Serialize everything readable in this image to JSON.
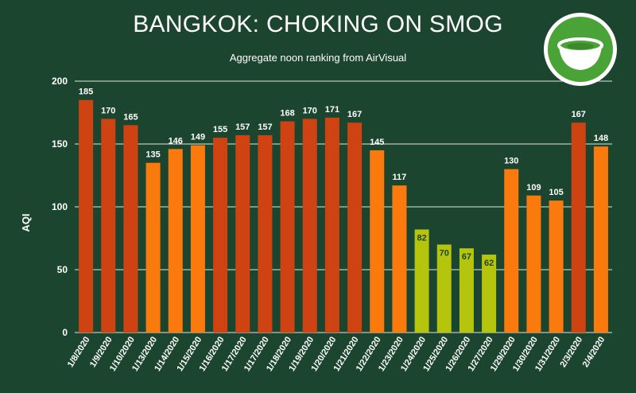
{
  "chart_data": {
    "type": "bar",
    "title": "BANGKOK: CHOKING ON SMOG",
    "subtitle": "Aggregate noon ranking from AirVisual",
    "ylabel": "AQI",
    "xlabel": "",
    "ylim": [
      0,
      200
    ],
    "yticks": [
      0,
      50,
      100,
      150,
      200
    ],
    "grid": true,
    "categories": [
      "1/8/2020",
      "1/9/2020",
      "1/10/2020",
      "1/13/2020",
      "1/14/2020",
      "1/15/2020",
      "1/16/2020",
      "1/17/2020",
      "1/17/2020",
      "1/18/2020",
      "1/19/2020",
      "1/20/2020",
      "1/21/2020",
      "1/22/2020",
      "1/23/2020",
      "1/24/2020",
      "1/25/2020",
      "1/26/2020",
      "1/27/2020",
      "1/29/2020",
      "1/30/2020",
      "1/31/2020",
      "2/3/2020",
      "2/4/2020"
    ],
    "values": [
      185,
      170,
      165,
      135,
      146,
      149,
      155,
      157,
      157,
      168,
      170,
      171,
      167,
      145,
      117,
      82,
      70,
      67,
      62,
      130,
      109,
      105,
      167,
      148
    ],
    "bar_colors": [
      "#cf4312",
      "#cf4312",
      "#cf4312",
      "#fb7a0e",
      "#fb7a0e",
      "#fb7a0e",
      "#cf4312",
      "#cf4312",
      "#cf4312",
      "#cf4312",
      "#cf4312",
      "#cf4312",
      "#cf4312",
      "#fb7a0e",
      "#fb7a0e",
      "#b5c40c",
      "#b5c40c",
      "#b5c40c",
      "#b5c40c",
      "#fb7a0e",
      "#fb7a0e",
      "#fb7a0e",
      "#cf4312",
      "#fb7a0e"
    ],
    "label_colors": [
      "#ffffff",
      "#ffffff",
      "#ffffff",
      "#ffffff",
      "#ffffff",
      "#ffffff",
      "#ffffff",
      "#ffffff",
      "#ffffff",
      "#ffffff",
      "#ffffff",
      "#ffffff",
      "#ffffff",
      "#ffffff",
      "#ffffff",
      "#1c4530",
      "#1c4530",
      "#1c4530",
      "#1c4530",
      "#ffffff",
      "#ffffff",
      "#ffffff",
      "#ffffff",
      "#ffffff"
    ]
  },
  "colors": {
    "background": "#1c4530",
    "gridline": "#dfe6e0",
    "text": "#ffffff",
    "logo_green": "#4aa336"
  },
  "logo": {
    "icon": "bowl-icon"
  }
}
